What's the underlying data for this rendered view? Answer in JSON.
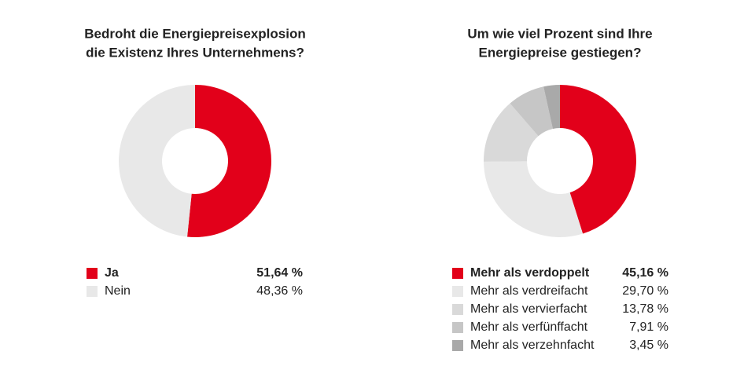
{
  "chart_data": [
    {
      "type": "donut",
      "title": [
        "Bedroht die Energiepreisexplosion",
        "die Existenz Ihres Unternehmens?"
      ],
      "categories": [
        "Ja",
        "Nein"
      ],
      "values": [
        51.64,
        48.36
      ],
      "value_labels": [
        "51,64 %",
        "48,36 %"
      ],
      "colors": [
        "#e2001a",
        "#e8e8e8"
      ]
    },
    {
      "type": "donut",
      "title": [
        "Um wie viel Prozent sind Ihre",
        "Energiepreise gestiegen?"
      ],
      "categories": [
        "Mehr als verdoppelt",
        "Mehr als verdreifacht",
        "Mehr als vervierfacht",
        "Mehr als verfünffacht",
        "Mehr als verzehnfacht"
      ],
      "values": [
        45.16,
        29.7,
        13.78,
        7.91,
        3.45
      ],
      "value_labels": [
        "45,16 %",
        "29,70 %",
        "13,78 %",
        "7,91 %",
        "3,45 %"
      ],
      "colors": [
        "#e2001a",
        "#e8e8e8",
        "#d9d9d9",
        "#c6c6c6",
        "#a9a9a9"
      ]
    }
  ]
}
